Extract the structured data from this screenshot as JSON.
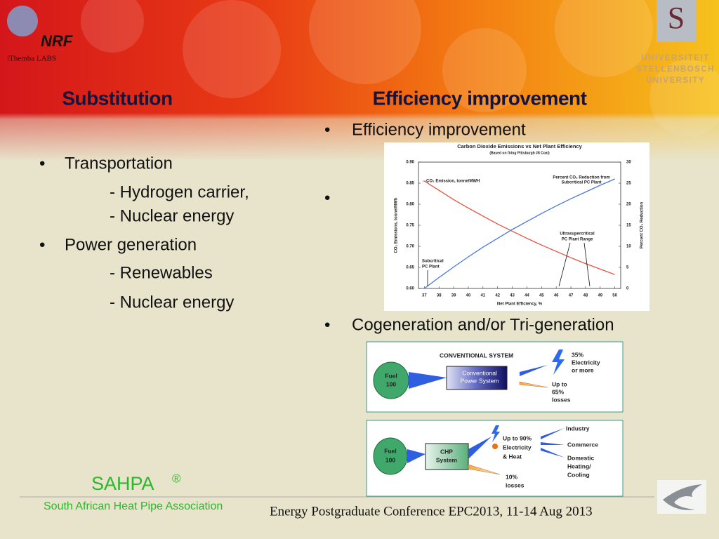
{
  "header": {
    "logo_left": {
      "name": "NRF",
      "sub": "iThemba LABS"
    },
    "logo_right": [
      "UNIVERSITEIT",
      "STELLENBOSCH",
      "UNIVERSITY"
    ]
  },
  "left": {
    "heading": "Substitution",
    "bullets": [
      {
        "text": "Transportation",
        "subs": [
          "- Hydrogen carrier,",
          "- Nuclear energy"
        ]
      },
      {
        "text": "Power generation",
        "subs": [
          "- Renewables",
          "- Nuclear energy"
        ]
      }
    ]
  },
  "right": {
    "heading": "Efficiency improvement",
    "bullets": [
      "Efficiency improvement",
      "Cogeneration and/or Tri-generation"
    ]
  },
  "chart_data": {
    "type": "line",
    "title": "Carbon Dioxide Emissions vs Net Plant Efficiency",
    "subtitle": "(Based on firing Pittsburgh #8 Coal)",
    "x_label": "Net Plant Efficiency, %",
    "y_label": "CO₂ Emissions, tonne/MWh",
    "y2_label": "Percent CO₂ Reduction",
    "x": [
      37,
      38,
      39,
      40,
      41,
      42,
      43,
      44,
      45,
      46,
      47,
      48,
      49,
      50
    ],
    "series": [
      {
        "name": "CO₂ Emission, tonne/MWH",
        "color": "#e8503c",
        "values": [
          0.855,
          0.833,
          0.811,
          0.791,
          0.772,
          0.753,
          0.736,
          0.719,
          0.703,
          0.688,
          0.673,
          0.659,
          0.646,
          0.633
        ]
      },
      {
        "name": [
          "Percent CO₂ Reduction from",
          "Subcritical PC Plant"
        ],
        "color": "#4a78d8",
        "axis": "y2",
        "values": [
          0,
          2.6,
          5.1,
          7.5,
          9.8,
          11.9,
          14.0,
          15.9,
          17.8,
          19.6,
          21.3,
          22.9,
          24.5,
          26.0
        ]
      }
    ],
    "annotations": [
      [
        "Ultrasupercritical",
        "PC Plant Range"
      ],
      [
        "Subcritical",
        "PC Plant"
      ]
    ],
    "xlim": [
      36.6,
      50.4
    ],
    "xticks": [
      37,
      38,
      39,
      40,
      41,
      42,
      43,
      44,
      45,
      46,
      47,
      48,
      49,
      50
    ],
    "ylim": [
      0.6,
      0.9
    ],
    "yticks": [
      {
        "value": 0.6,
        "label": "0.60"
      },
      0.65,
      {
        "value": 0.7,
        "label": "0.70"
      },
      0.75,
      {
        "value": 0.8,
        "label": "0.80"
      },
      0.85,
      {
        "value": 0.9,
        "label": "0.90"
      }
    ],
    "y2lim": [
      0,
      30
    ],
    "y2ticks": [
      0,
      5,
      10,
      15,
      20,
      25,
      30
    ],
    "grid": false
  },
  "diagrams": {
    "conventional": {
      "title": "CONVENTIONAL SYSTEM",
      "fuel": [
        "Fuel",
        "100"
      ],
      "system": [
        "Conventional",
        "Power System"
      ],
      "output": [
        "35%",
        "Electricity",
        "or more"
      ],
      "losses": [
        "Up to",
        "65%",
        "losses"
      ]
    },
    "chp": {
      "fuel": [
        "Fuel",
        "100"
      ],
      "system": [
        "CHP",
        "System"
      ],
      "output": [
        "Up to 90%",
        "Electricity",
        "& Heat"
      ],
      "losses": [
        "10%",
        "losses"
      ],
      "uses": [
        [
          "Industry"
        ],
        [
          "Commerce"
        ],
        [
          "Domestic",
          "Heating/",
          "Cooling"
        ]
      ]
    }
  },
  "footer": {
    "brand": "SAHPA",
    "registered": "®",
    "association": "South African Heat Pipe Association",
    "conference": "Energy Postgraduate Conference EPC2013, 11-14 Aug 2013"
  }
}
